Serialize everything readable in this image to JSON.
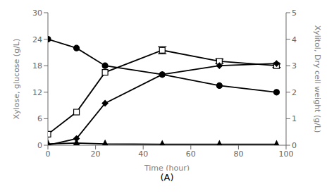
{
  "chart_data": {
    "type": "line",
    "title": "(A)",
    "xlabel": "Time (hour)",
    "ylabel": "Xylose, glucose (g/L)",
    "y2label": "Xylitol, Dry cell weight (g/L)",
    "x": [
      0,
      12,
      24,
      48,
      72,
      96
    ],
    "xlim": [
      0,
      100
    ],
    "xticks": [
      0,
      20,
      40,
      60,
      80,
      100
    ],
    "ylim": [
      0,
      30
    ],
    "yticks": [
      0,
      6,
      12,
      18,
      24,
      30
    ],
    "y2lim": [
      0,
      5
    ],
    "y2ticks": [
      0,
      1,
      2,
      3,
      4,
      5
    ],
    "grid": false,
    "series": [
      {
        "marker": "circle",
        "color": "black",
        "line_style": "solid",
        "values": [
          24,
          22,
          18,
          16,
          13.5,
          12
        ]
      },
      {
        "marker": "open-square",
        "color": "black",
        "line_style": "solid",
        "values": [
          2.5,
          7.5,
          16.5,
          21.5,
          19.0,
          18.0
        ],
        "errors": [
          0,
          0,
          0,
          0.8,
          0.5,
          0.4
        ]
      },
      {
        "marker": "diamond",
        "color": "black",
        "line_style": "solid",
        "values": [
          0.0,
          1.5,
          9.5,
          16.0,
          18.0,
          18.5
        ]
      },
      {
        "marker": "triangle",
        "color": "black",
        "line_style": "solid",
        "values": [
          0.3,
          0.5,
          0.3,
          0.2,
          0.2,
          0.2
        ]
      }
    ]
  }
}
